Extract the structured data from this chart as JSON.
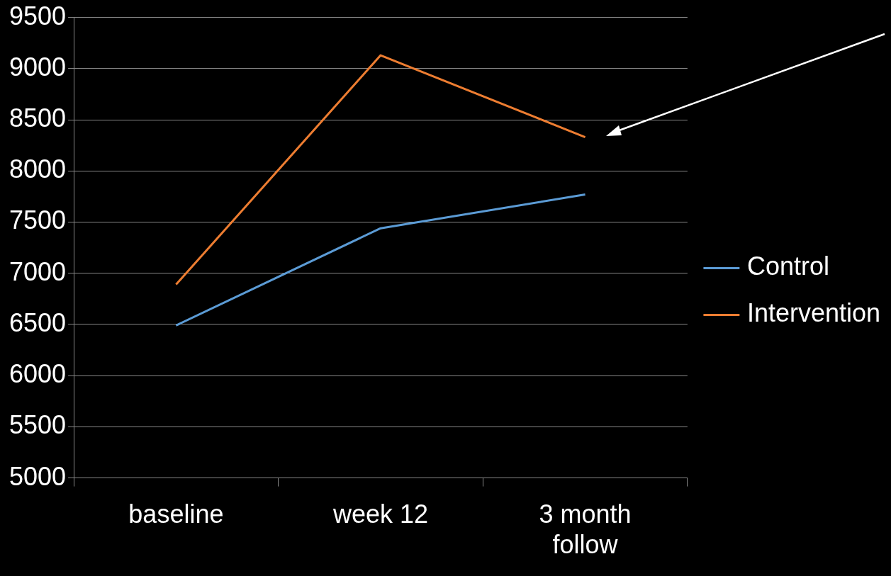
{
  "chart_data": {
    "type": "line",
    "categories": [
      "baseline",
      "week 12",
      "3 month follow"
    ],
    "series": [
      {
        "name": "Control",
        "color": "#5b9bd5",
        "values": [
          6490,
          7440,
          7770
        ]
      },
      {
        "name": "Intervention",
        "color": "#ed7d31",
        "values": [
          6890,
          9130,
          8330
        ]
      }
    ],
    "ylim": [
      5000,
      9500
    ],
    "yticks": [
      5000,
      5500,
      6000,
      6500,
      7000,
      7500,
      8000,
      8500,
      9000,
      9500
    ],
    "grid": "y",
    "legend": "right",
    "marker": "none",
    "line_style": "solid"
  }
}
